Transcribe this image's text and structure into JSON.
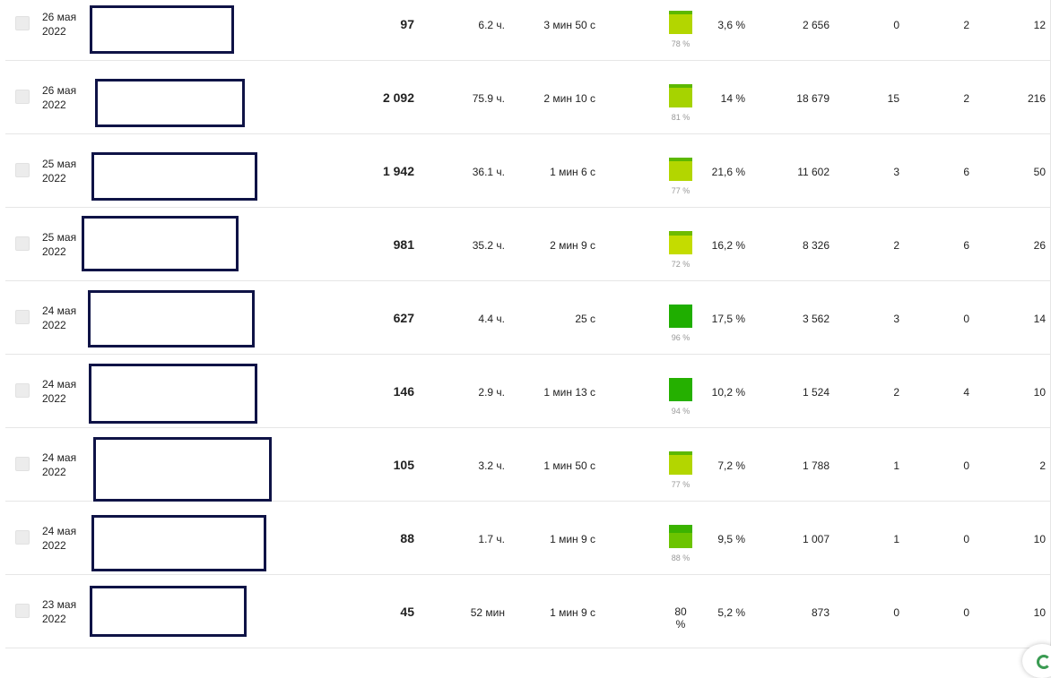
{
  "rows": [
    {
      "date": "26 мая\n2022",
      "visits": "97",
      "hours": "6.2 ч.",
      "duration": "3 мин 50 с",
      "depth_percent": "78 %",
      "depth_color_top": "#5cb800",
      "depth_color_bottom": "#b3d600",
      "bounce": "3,6 %",
      "views": "2 656",
      "c1": "0",
      "c2": "2",
      "c3": "12"
    },
    {
      "date": "26 мая\n2022",
      "visits": "2 092",
      "hours": "75.9 ч.",
      "duration": "2 мин 10 с",
      "depth_percent": "81 %",
      "depth_color_top": "#5cb800",
      "depth_color_bottom": "#a6d300",
      "bounce": "14 %",
      "views": "18 679",
      "c1": "15",
      "c2": "2",
      "c3": "216"
    },
    {
      "date": "25 мая\n2022",
      "visits": "1 942",
      "hours": "36.1 ч.",
      "duration": "1 мин 6 с",
      "depth_percent": "77 %",
      "depth_color_top": "#5cb800",
      "depth_color_bottom": "#b3d600",
      "bounce": "21,6 %",
      "views": "11 602",
      "c1": "3",
      "c2": "6",
      "c3": "50"
    },
    {
      "date": "25 мая\n2022",
      "visits": "981",
      "hours": "35.2 ч.",
      "duration": "2 мин 9 с",
      "depth_percent": "72 %",
      "depth_color_top": "#6fbb00",
      "depth_color_bottom": "#c4dc00",
      "bounce": "16,2 %",
      "views": "8 326",
      "c1": "2",
      "c2": "6",
      "c3": "26"
    },
    {
      "date": "24 мая\n2022",
      "visits": "627",
      "hours": "4.4 ч.",
      "duration": "25 с",
      "depth_percent": "96 %",
      "depth_color_top": "#1fae00",
      "depth_color_bottom": "#1fae00",
      "bounce": "17,5 %",
      "views": "3 562",
      "c1": "3",
      "c2": "0",
      "c3": "14"
    },
    {
      "date": "24 мая\n2022",
      "visits": "146",
      "hours": "2.9 ч.",
      "duration": "1 мин 13 с",
      "depth_percent": "94 %",
      "depth_color_top": "#25b000",
      "depth_color_bottom": "#2bb200",
      "bounce": "10,2 %",
      "views": "1 524",
      "c1": "2",
      "c2": "4",
      "c3": "10"
    },
    {
      "date": "24 мая\n2022",
      "visits": "105",
      "hours": "3.2 ч.",
      "duration": "1 мин 50 с",
      "depth_percent": "77 %",
      "depth_color_top": "#5cb800",
      "depth_color_bottom": "#b3d600",
      "bounce": "7,2 %",
      "views": "1 788",
      "c1": "1",
      "c2": "0",
      "c3": "2"
    },
    {
      "date": "24 мая\n2022",
      "visits": "88",
      "hours": "1.7 ч.",
      "duration": "1 мин 9 с",
      "depth_percent": "88 %",
      "depth_color_top": "#3bb300",
      "depth_color_bottom": "#6cc400",
      "bounce": "9,5 %",
      "views": "1 007",
      "c1": "1",
      "c2": "0",
      "c3": "10"
    },
    {
      "date": "23 мая\n2022",
      "visits": "45",
      "hours": "52 мин",
      "duration": "1 мин 9 с",
      "depth_text": "80 %",
      "bounce": "5,2 %",
      "views": "873",
      "c1": "0",
      "c2": "0",
      "c3": "10"
    }
  ]
}
